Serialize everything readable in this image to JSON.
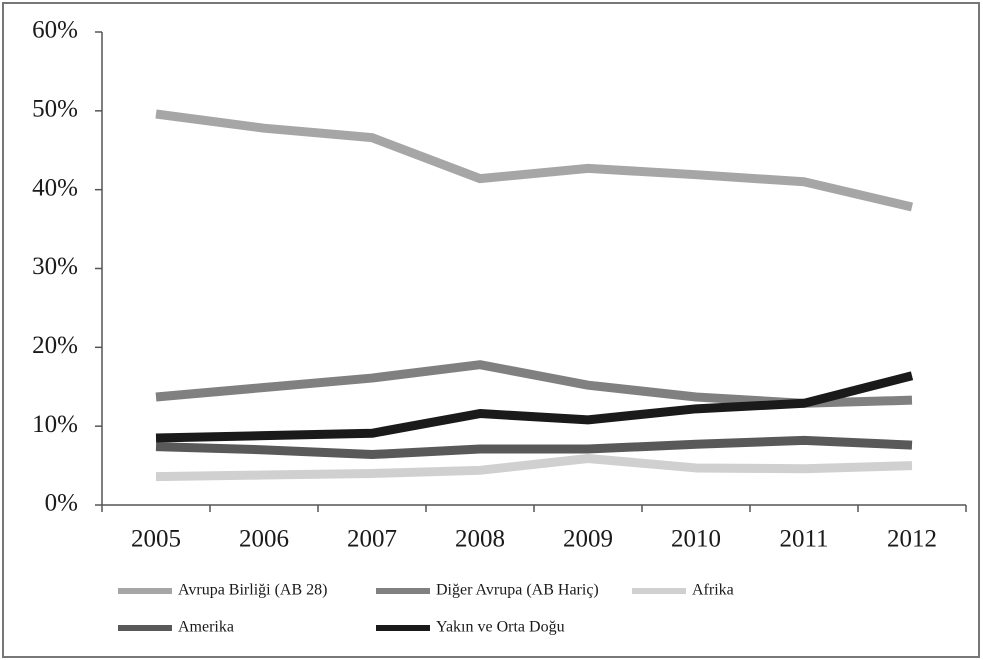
{
  "chart_data": {
    "type": "line",
    "categories": [
      "2005",
      "2006",
      "2007",
      "2008",
      "2009",
      "2010",
      "2011",
      "2012"
    ],
    "series": [
      {
        "name": "Avrupa Birliği (AB 28)",
        "color": "#a6a6a6",
        "values": [
          49.6,
          47.8,
          46.6,
          41.4,
          42.7,
          41.9,
          41.0,
          37.8
        ]
      },
      {
        "name": "Diğer Avrupa (AB Hariç)",
        "color": "#808080",
        "values": [
          13.7,
          14.9,
          16.1,
          17.8,
          15.2,
          13.7,
          12.9,
          13.3
        ]
      },
      {
        "name": "Afrika",
        "color": "#d0d0d0",
        "values": [
          3.6,
          3.8,
          4.0,
          4.4,
          5.9,
          4.7,
          4.6,
          5.0
        ]
      },
      {
        "name": "Amerika",
        "color": "#595959",
        "values": [
          7.4,
          7.0,
          6.4,
          7.1,
          7.1,
          7.7,
          8.2,
          7.6
        ]
      },
      {
        "name": "Yakın ve Orta Doğu",
        "color": "#1a1a1a",
        "values": [
          8.5,
          8.8,
          9.1,
          11.6,
          10.8,
          12.2,
          12.9,
          16.4
        ]
      }
    ],
    "ylim": [
      0,
      60
    ],
    "yticks": [
      {
        "value": 0,
        "label": "0%"
      },
      {
        "value": 10,
        "label": "10%"
      },
      {
        "value": 20,
        "label": "20%"
      },
      {
        "value": 30,
        "label": "30%"
      },
      {
        "value": 40,
        "label": "40%"
      },
      {
        "value": 50,
        "label": "50%"
      },
      {
        "value": 60,
        "label": "60%"
      }
    ],
    "grid": false,
    "legend": "bottom"
  }
}
